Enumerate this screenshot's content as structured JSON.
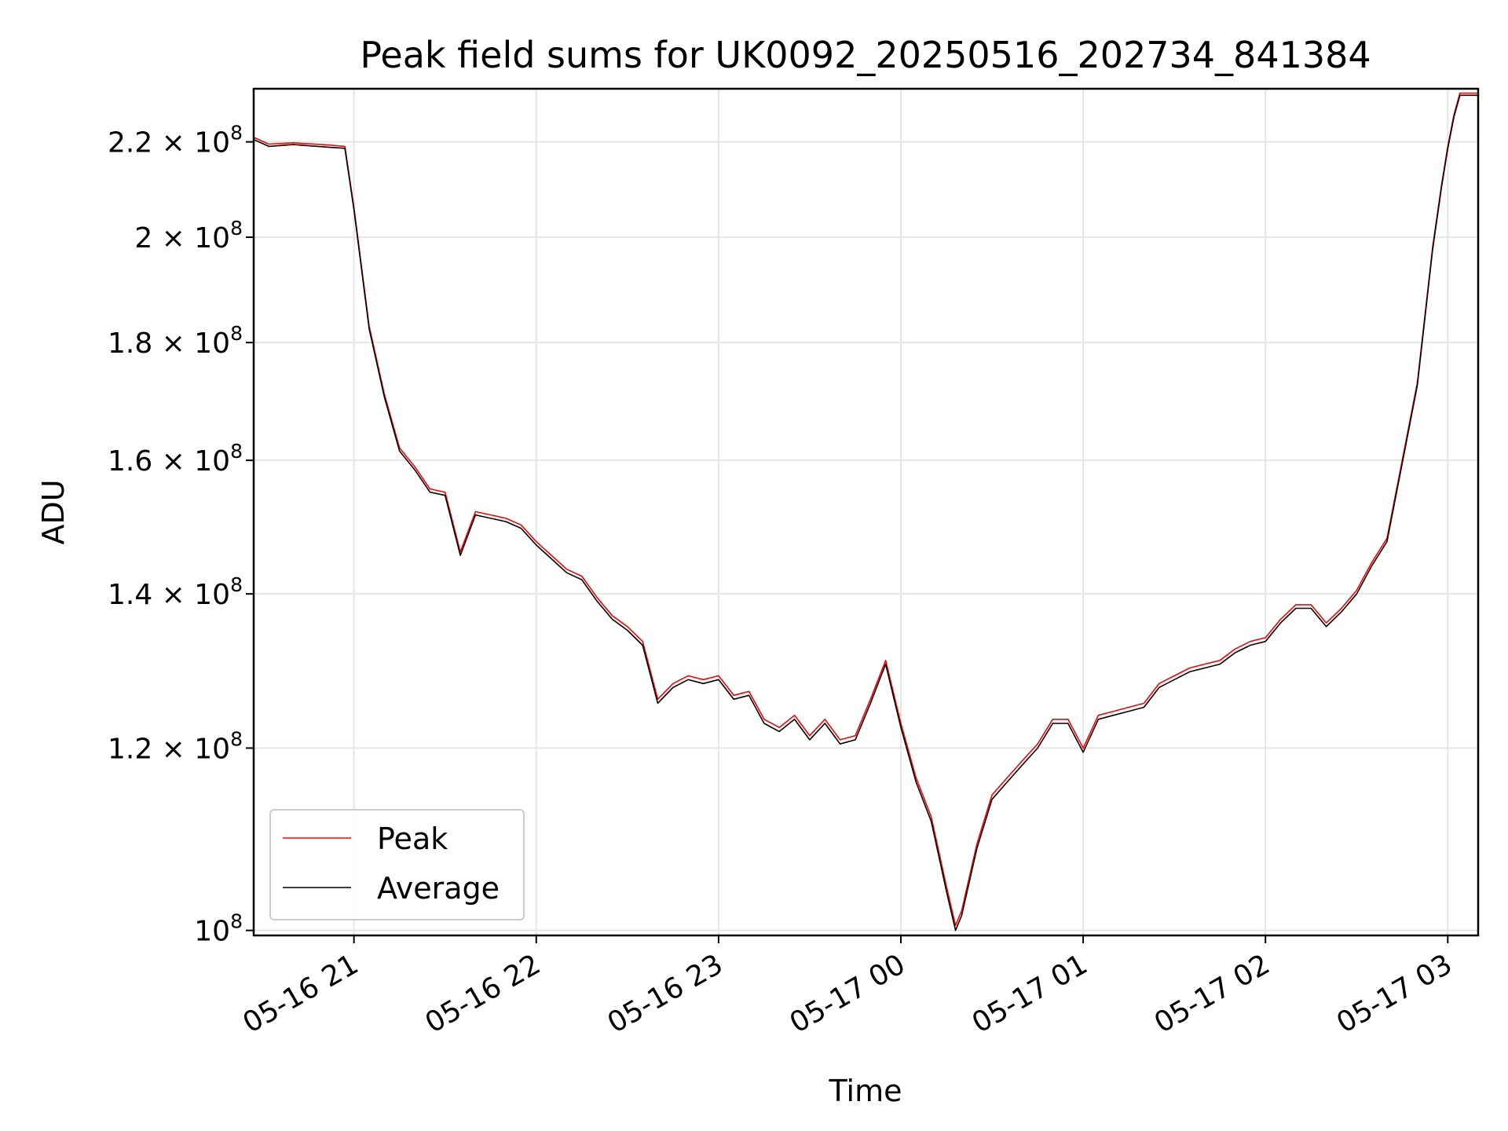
{
  "chart_data": {
    "type": "line",
    "title": "Peak field sums for UK0092_20250516_202734_841384",
    "xlabel": "Time",
    "ylabel": "ADU",
    "yscale": "log",
    "xlim": [
      "2025-05-16 20:27",
      "2025-05-17 03:10"
    ],
    "ylim": [
      99500000,
      232000000
    ],
    "grid": true,
    "legend_position": "lower-left",
    "x_ticks": [
      {
        "t": "2025-05-16 21:00",
        "label": "05-16 21"
      },
      {
        "t": "2025-05-16 22:00",
        "label": "05-16 22"
      },
      {
        "t": "2025-05-16 23:00",
        "label": "05-16 23"
      },
      {
        "t": "2025-05-17 00:00",
        "label": "05-17 00"
      },
      {
        "t": "2025-05-17 01:00",
        "label": "05-17 01"
      },
      {
        "t": "2025-05-17 02:00",
        "label": "05-17 02"
      },
      {
        "t": "2025-05-17 03:00",
        "label": "05-17 03"
      }
    ],
    "y_ticks": [
      {
        "value": 100000000,
        "mantissa": "",
        "exp": "8"
      },
      {
        "value": 120000000,
        "mantissa": "1.2",
        "exp": "8"
      },
      {
        "value": 140000000,
        "mantissa": "1.4",
        "exp": "8"
      },
      {
        "value": 160000000,
        "mantissa": "1.6",
        "exp": "8"
      },
      {
        "value": 180000000,
        "mantissa": "1.8",
        "exp": "8"
      },
      {
        "value": 200000000,
        "mantissa": "2",
        "exp": "8"
      },
      {
        "value": 220000000,
        "mantissa": "2.2",
        "exp": "8"
      }
    ],
    "series": [
      {
        "name": "Peak",
        "color": "#ff0000",
        "x": [
          "2025-05-16 20:27",
          "2025-05-16 20:32",
          "2025-05-16 20:40",
          "2025-05-16 20:52",
          "2025-05-16 20:57",
          "2025-05-16 21:00",
          "2025-05-16 21:05",
          "2025-05-16 21:10",
          "2025-05-16 21:15",
          "2025-05-16 21:20",
          "2025-05-16 21:25",
          "2025-05-16 21:30",
          "2025-05-16 21:35",
          "2025-05-16 21:40",
          "2025-05-16 21:45",
          "2025-05-16 21:50",
          "2025-05-16 21:55",
          "2025-05-16 22:00",
          "2025-05-16 22:05",
          "2025-05-16 22:10",
          "2025-05-16 22:15",
          "2025-05-16 22:20",
          "2025-05-16 22:25",
          "2025-05-16 22:30",
          "2025-05-16 22:35",
          "2025-05-16 22:40",
          "2025-05-16 22:45",
          "2025-05-16 22:50",
          "2025-05-16 22:55",
          "2025-05-16 23:00",
          "2025-05-16 23:05",
          "2025-05-16 23:10",
          "2025-05-16 23:15",
          "2025-05-16 23:20",
          "2025-05-16 23:25",
          "2025-05-16 23:30",
          "2025-05-16 23:35",
          "2025-05-16 23:40",
          "2025-05-16 23:45",
          "2025-05-16 23:50",
          "2025-05-16 23:55",
          "2025-05-17 00:00",
          "2025-05-17 00:05",
          "2025-05-17 00:10",
          "2025-05-17 00:15",
          "2025-05-17 00:18",
          "2025-05-17 00:20",
          "2025-05-17 00:25",
          "2025-05-17 00:30",
          "2025-05-17 00:35",
          "2025-05-17 00:40",
          "2025-05-17 00:45",
          "2025-05-17 00:50",
          "2025-05-17 00:55",
          "2025-05-17 01:00",
          "2025-05-17 01:05",
          "2025-05-17 01:10",
          "2025-05-17 01:15",
          "2025-05-17 01:20",
          "2025-05-17 01:25",
          "2025-05-17 01:30",
          "2025-05-17 01:35",
          "2025-05-17 01:40",
          "2025-05-17 01:45",
          "2025-05-17 01:50",
          "2025-05-17 01:55",
          "2025-05-17 02:00",
          "2025-05-17 02:05",
          "2025-05-17 02:10",
          "2025-05-17 02:15",
          "2025-05-17 02:20",
          "2025-05-17 02:25",
          "2025-05-17 02:30",
          "2025-05-17 02:35",
          "2025-05-17 02:40",
          "2025-05-17 02:45",
          "2025-05-17 02:50",
          "2025-05-17 02:55",
          "2025-05-17 02:58",
          "2025-05-17 03:00",
          "2025-05-17 03:02",
          "2025-05-17 03:04",
          "2025-05-17 03:10"
        ],
        "y": [
          221000000,
          219500000,
          219800000,
          219300000,
          219000000,
          206000000,
          183000000,
          171000000,
          162000000,
          159000000,
          155500000,
          155000000,
          146000000,
          152000000,
          151500000,
          151000000,
          150000000,
          147500000,
          145500000,
          143500000,
          142500000,
          139500000,
          137000000,
          135500000,
          133500000,
          126000000,
          128000000,
          129000000,
          128500000,
          129000000,
          126500000,
          127000000,
          123500000,
          122500000,
          124000000,
          121500000,
          123500000,
          121000000,
          121500000,
          126000000,
          131000000,
          123000000,
          116500000,
          112000000,
          104500000,
          100500000,
          102000000,
          109000000,
          114500000,
          116500000,
          118500000,
          120500000,
          123500000,
          123500000,
          120000000,
          124000000,
          124500000,
          125000000,
          125500000,
          128000000,
          129000000,
          130000000,
          130500000,
          131000000,
          132500000,
          133500000,
          134000000,
          136500000,
          138500000,
          138500000,
          136000000,
          138000000,
          140500000,
          144500000,
          148000000,
          160000000,
          173000000,
          198000000,
          211000000,
          219000000,
          226000000,
          231000000,
          231000000
        ]
      },
      {
        "name": "Average",
        "color": "#000000",
        "x": [
          "2025-05-16 20:27",
          "2025-05-16 20:32",
          "2025-05-16 20:40",
          "2025-05-16 20:52",
          "2025-05-16 20:57",
          "2025-05-16 21:00",
          "2025-05-16 21:05",
          "2025-05-16 21:10",
          "2025-05-16 21:15",
          "2025-05-16 21:20",
          "2025-05-16 21:25",
          "2025-05-16 21:30",
          "2025-05-16 21:35",
          "2025-05-16 21:40",
          "2025-05-16 21:45",
          "2025-05-16 21:50",
          "2025-05-16 21:55",
          "2025-05-16 22:00",
          "2025-05-16 22:05",
          "2025-05-16 22:10",
          "2025-05-16 22:15",
          "2025-05-16 22:20",
          "2025-05-16 22:25",
          "2025-05-16 22:30",
          "2025-05-16 22:35",
          "2025-05-16 22:40",
          "2025-05-16 22:45",
          "2025-05-16 22:50",
          "2025-05-16 22:55",
          "2025-05-16 23:00",
          "2025-05-16 23:05",
          "2025-05-16 23:10",
          "2025-05-16 23:15",
          "2025-05-16 23:20",
          "2025-05-16 23:25",
          "2025-05-16 23:30",
          "2025-05-16 23:35",
          "2025-05-16 23:40",
          "2025-05-16 23:45",
          "2025-05-16 23:50",
          "2025-05-16 23:55",
          "2025-05-17 00:00",
          "2025-05-17 00:05",
          "2025-05-17 00:10",
          "2025-05-17 00:15",
          "2025-05-17 00:18",
          "2025-05-17 00:20",
          "2025-05-17 00:25",
          "2025-05-17 00:30",
          "2025-05-17 00:35",
          "2025-05-17 00:40",
          "2025-05-17 00:45",
          "2025-05-17 00:50",
          "2025-05-17 00:55",
          "2025-05-17 01:00",
          "2025-05-17 01:05",
          "2025-05-17 01:10",
          "2025-05-17 01:15",
          "2025-05-17 01:20",
          "2025-05-17 01:25",
          "2025-05-17 01:30",
          "2025-05-17 01:35",
          "2025-05-17 01:40",
          "2025-05-17 01:45",
          "2025-05-17 01:50",
          "2025-05-17 01:55",
          "2025-05-17 02:00",
          "2025-05-17 02:05",
          "2025-05-17 02:10",
          "2025-05-17 02:15",
          "2025-05-17 02:20",
          "2025-05-17 02:25",
          "2025-05-17 02:30",
          "2025-05-17 02:35",
          "2025-05-17 02:40",
          "2025-05-17 02:45",
          "2025-05-17 02:50",
          "2025-05-17 02:55",
          "2025-05-17 02:58",
          "2025-05-17 03:00",
          "2025-05-17 03:02",
          "2025-05-17 03:04",
          "2025-05-17 03:10"
        ],
        "y": [
          220500000,
          219000000,
          219400000,
          218800000,
          218600000,
          205500000,
          182500000,
          170500000,
          161500000,
          158500000,
          155000000,
          154500000,
          145500000,
          151500000,
          151000000,
          150500000,
          149500000,
          147000000,
          145000000,
          143000000,
          142000000,
          139000000,
          136500000,
          135000000,
          133000000,
          125500000,
          127500000,
          128500000,
          128000000,
          128500000,
          126000000,
          126500000,
          123000000,
          122000000,
          123500000,
          121000000,
          123000000,
          120500000,
          121000000,
          125500000,
          130500000,
          122500000,
          116000000,
          111500000,
          104000000,
          100000000,
          101500000,
          108500000,
          114000000,
          116000000,
          118000000,
          120000000,
          123000000,
          123000000,
          119500000,
          123500000,
          124000000,
          124500000,
          125000000,
          127500000,
          128500000,
          129500000,
          130000000,
          130500000,
          132000000,
          133000000,
          133500000,
          136000000,
          138000000,
          138000000,
          135500000,
          137500000,
          140000000,
          144000000,
          147500000,
          159500000,
          172500000,
          197500000,
          210500000,
          218500000,
          225500000,
          230500000,
          230500000
        ]
      }
    ]
  }
}
